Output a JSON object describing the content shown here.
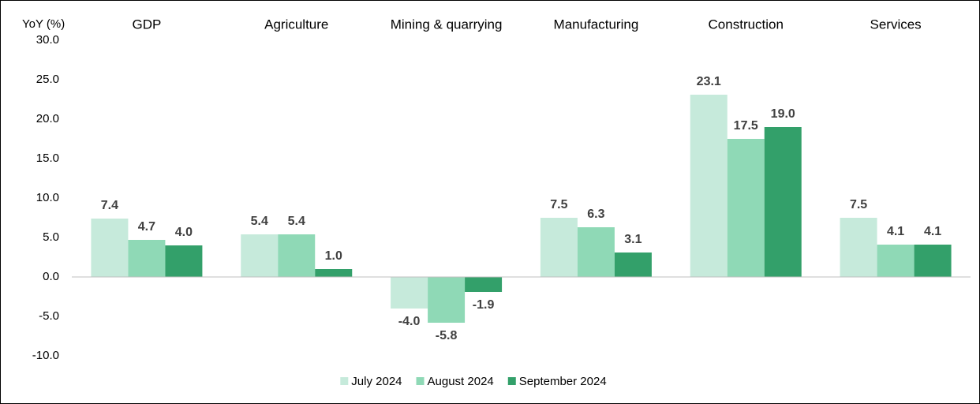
{
  "chart_data": {
    "type": "bar",
    "y_label": "YoY (%)",
    "categories": [
      "GDP",
      "Agriculture",
      "Mining & quarrying",
      "Manufacturing",
      "Construction",
      "Services"
    ],
    "series": [
      {
        "name": "July 2024",
        "color": "#c6eadb",
        "values": [
          7.4,
          5.4,
          -4.0,
          7.5,
          23.1,
          7.5
        ],
        "value_labels": [
          "7.4",
          "5.4",
          "-4.0",
          "7.5",
          "23.1",
          "7.5"
        ]
      },
      {
        "name": "August 2024",
        "color": "#8fd9b6",
        "values": [
          4.7,
          5.4,
          -5.8,
          6.3,
          17.5,
          4.1
        ],
        "value_labels": [
          "4.7",
          "5.4",
          "-5.8",
          "6.3",
          "17.5",
          "4.1"
        ]
      },
      {
        "name": "September 2024",
        "color": "#33a06a",
        "values": [
          4.0,
          1.0,
          -1.9,
          3.1,
          19.0,
          4.1
        ],
        "value_labels": [
          "4.0",
          "1.0",
          "-1.9",
          "3.1",
          "19.0",
          "4.1"
        ]
      }
    ],
    "ylim": [
      -10,
      30
    ],
    "yticks": [
      {
        "value": -10,
        "label": "-10.0"
      },
      {
        "value": -5,
        "label": "-5.0"
      },
      {
        "value": 0,
        "label": "0.0"
      },
      {
        "value": 5,
        "label": "5.0"
      },
      {
        "value": 10,
        "label": "10.0"
      },
      {
        "value": 15,
        "label": "15.0"
      },
      {
        "value": 20,
        "label": "20.0"
      },
      {
        "value": 25,
        "label": "25.0"
      },
      {
        "value": 30,
        "label": "30.0"
      }
    ],
    "grid": false,
    "legend": "bottom"
  }
}
